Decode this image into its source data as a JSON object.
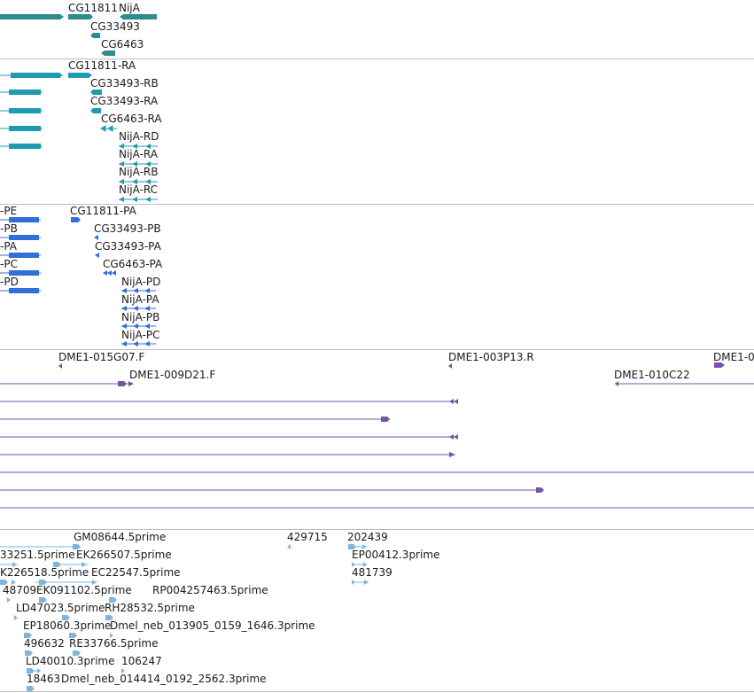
{
  "colors": {
    "gene": "#2f8c8c",
    "transcript": "#1e9bb0",
    "protein": "#2f6fd6",
    "clone": "#7653a8",
    "est": "#7fb5dc",
    "separator": "#bdbdbd"
  },
  "gene_track": {
    "labels": [
      "CG11811",
      "NijA",
      "CG33493",
      "CG6463"
    ]
  },
  "transcript_track": {
    "labels": [
      "CG11811-RA",
      "CG33493-RB",
      "CG33493-RA",
      "CG6463-RA",
      "NijA-RD",
      "NijA-RA",
      "NijA-RB",
      "NijA-RC"
    ]
  },
  "protein_track": {
    "labels": [
      "-PE",
      "-PB",
      "-PA",
      "-PC",
      "-PD",
      "CG11811-PA",
      "CG33493-PB",
      "CG33493-PA",
      "CG6463-PA",
      "NijA-PD",
      "NijA-PA",
      "NijA-PB",
      "NijA-PC"
    ]
  },
  "clone_track": {
    "labels": [
      "DME1-015G07.F",
      "DME1-003P13.R",
      "DME1-0",
      "DME1-009D21.F",
      "DME1-010C22"
    ]
  },
  "est_track": {
    "labels": [
      "GM08644.5prime",
      "429715",
      "202439",
      "33251.5prime",
      "EK266507.5prime",
      "EP00412.3prime",
      "K226518.5prime",
      "EC22547.5prime",
      "481739",
      "48709",
      "EK091102.5prime",
      "RP004257463.5prime",
      "LD47023.5prime",
      "RH28532.5prime",
      "EP18060.3prime",
      "Dmel_neb_013905_0159_1646.3prime",
      "496632",
      "RE33766.5prime",
      "LD40010.3prime",
      "106247",
      "18463",
      "Dmel_neb_014414_0192_2562.3prime"
    ]
  }
}
